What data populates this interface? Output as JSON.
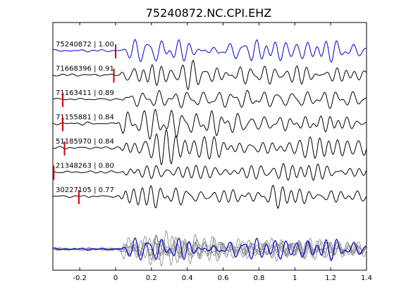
{
  "chart_data": {
    "type": "line",
    "title": "75240872.NC.CPI.EHZ",
    "xlabel": "",
    "ylabel": "",
    "xlim": [
      -0.35,
      1.4
    ],
    "xticks": [
      -0.2,
      0,
      0.2,
      0.4,
      0.6,
      0.8,
      1,
      1.2,
      1.4
    ],
    "xtick_labels": [
      "-0.2",
      "0",
      "0.2",
      "0.4",
      "0.6",
      "0.8",
      "1",
      "1.2",
      "1.4"
    ],
    "grid": false,
    "traces": [
      {
        "label": "75240872 | 1.00",
        "event_id": "75240872",
        "correlation": 1.0,
        "pick_time": 0.0,
        "color": "#0000cc"
      },
      {
        "label": "71668396 | 0.91",
        "event_id": "71668396",
        "correlation": 0.91,
        "pick_time": -0.01,
        "color": "#000000"
      },
      {
        "label": "71163411 | 0.89",
        "event_id": "71163411",
        "correlation": 0.89,
        "pick_time": -0.295,
        "color": "#000000"
      },
      {
        "label": "71155881 | 0.84",
        "event_id": "71155881",
        "correlation": 0.84,
        "pick_time": -0.295,
        "color": "#000000"
      },
      {
        "label": "51185970 | 0.84",
        "event_id": "51185970",
        "correlation": 0.84,
        "pick_time": -0.285,
        "color": "#000000"
      },
      {
        "label": "21348263 | 0.80",
        "event_id": "21348263",
        "correlation": 0.8,
        "pick_time": -0.345,
        "color": "#000000"
      },
      {
        "label": "30227105 | 0.77",
        "event_id": "30227105",
        "correlation": 0.77,
        "pick_time": -0.205,
        "color": "#000000"
      }
    ],
    "stack": {
      "reference_color": "#0000cc",
      "overlay_color": "#808080"
    },
    "pick_marker_color": "#cc0000"
  }
}
